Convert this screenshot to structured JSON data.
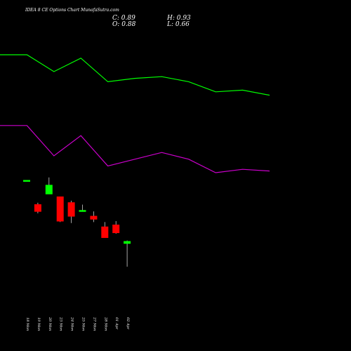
{
  "header": {
    "title": "IDEA 8  CE Options  Chart MunafaSutra.com",
    "close_label": "C: 0.89",
    "high_label": "H: 0.93",
    "open_label": "O: 0.88",
    "low_label": "L: 0.66"
  },
  "colors": {
    "background": "#000000",
    "upper_line": "#00ff00",
    "lower_line": "#cc00cc",
    "bull": "#00ff00",
    "bear": "#ff0000",
    "text": "#ffffff"
  },
  "chart_data": [
    {
      "type": "line",
      "series": [
        {
          "values": [
            0.6,
            0.6,
            0.55,
            0.59,
            0.52,
            0.53,
            0.535,
            0.52,
            0.49,
            0.495,
            0.48
          ]
        },
        {
          "values": [
            0.39,
            0.39,
            0.3,
            0.36,
            0.27,
            0.29,
            0.31,
            0.29,
            0.25,
            0.26,
            0.255
          ]
        }
      ],
      "ylim": [
        0.2,
        0.7
      ],
      "grid": false
    },
    {
      "type": "candlestick",
      "categories": [
        "18 Mon",
        "19 Mon",
        "20 Mon",
        "23 Mon",
        "24 Mon",
        "25 Mon",
        "27 Mon",
        "28 Mon",
        "01 Apr",
        "02 Apr"
      ],
      "candles": [
        {
          "open": 1.05,
          "high": 1.05,
          "low": 1.05,
          "close": 1.05
        },
        {
          "open": 0.8,
          "high": 0.82,
          "low": 0.71,
          "close": 0.73
        },
        {
          "open": 0.91,
          "high": 1.08,
          "low": 0.91,
          "close": 1.0
        },
        {
          "open": 0.88,
          "high": 0.88,
          "low": 0.62,
          "close": 0.63
        },
        {
          "open": 0.82,
          "high": 0.84,
          "low": 0.61,
          "close": 0.68
        },
        {
          "open": 0.74,
          "high": 0.8,
          "low": 0.73,
          "close": 0.74
        },
        {
          "open": 0.68,
          "high": 0.73,
          "low": 0.62,
          "close": 0.65
        },
        {
          "open": 0.57,
          "high": 0.62,
          "low": 0.46,
          "close": 0.46
        },
        {
          "open": 0.59,
          "high": 0.63,
          "low": 0.5,
          "close": 0.51
        },
        {
          "open": 0.4,
          "high": 0.43,
          "low": 0.16,
          "close": 0.42
        }
      ],
      "ylim": [
        0,
        1.1
      ],
      "grid": false
    }
  ]
}
